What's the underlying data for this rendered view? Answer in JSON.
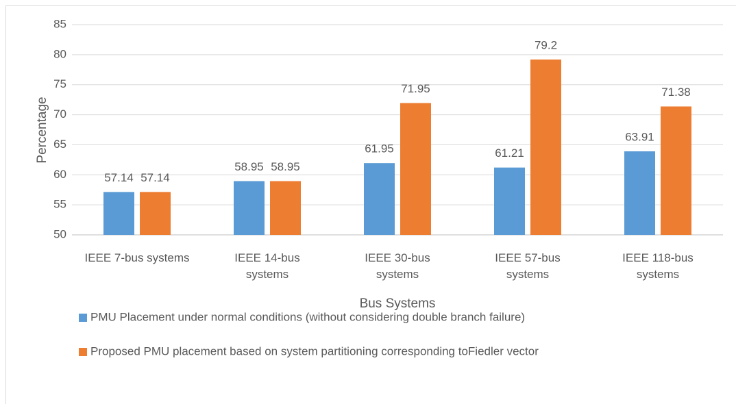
{
  "chart_data": {
    "type": "bar",
    "x_label": "Bus Systems",
    "y_label": "Percentage",
    "categories": [
      "IEEE 7-bus systems",
      "IEEE 14-bus\nsystems",
      "IEEE 30-bus\nsystems",
      "IEEE 57-bus\nsystems",
      "IEEE 118-bus\nsystems"
    ],
    "series": [
      {
        "name": "PMU Placement under normal conditions (without considering double branch failure)",
        "color": "#5b9bd5",
        "values": [
          57.14,
          58.95,
          61.95,
          61.21,
          63.91
        ]
      },
      {
        "name": "Proposed PMU placement based on system partitioning corresponding toFiedler vector",
        "color": "#ed7d31",
        "values": [
          57.14,
          58.95,
          71.95,
          79.2,
          71.38
        ]
      }
    ],
    "ylim": [
      50,
      85
    ],
    "yticks": [
      50,
      55,
      60,
      65,
      70,
      75,
      80,
      85
    ],
    "grid": true,
    "legend": "bottom"
  }
}
